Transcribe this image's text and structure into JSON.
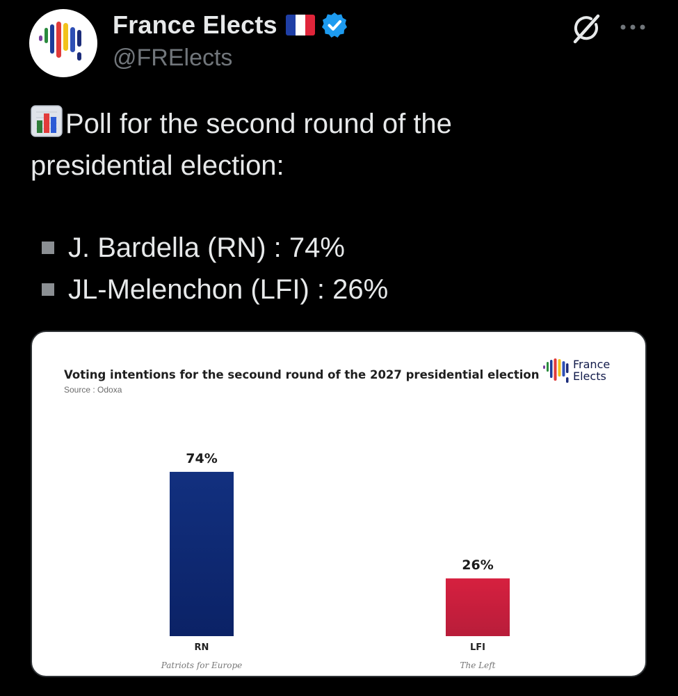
{
  "account": {
    "display_name": "France Elects",
    "handle": "@FRElects",
    "flag_icon": "france-flag-icon",
    "verified_icon": "verified-badge-icon"
  },
  "header_actions": {
    "grok_icon": "grok-icon",
    "more_icon": "more-options-icon"
  },
  "tweet": {
    "emoji_icon": "bar-chart-emoji",
    "text_line1": "Poll for the second round of the",
    "text_line2": "presidential election:",
    "bullets": [
      {
        "text": "J. Bardella (RN) : 74%"
      },
      {
        "text": "JL-Melenchon (LFI) : 26%"
      }
    ]
  },
  "media": {
    "brand_line1": "France",
    "brand_line2": "Elects",
    "colors": {
      "rn": "#0f2a7c",
      "lfi": "#c8203f"
    }
  },
  "chart_data": {
    "type": "bar",
    "title": "Voting intentions for the secound round of the 2027 presidential election",
    "source": "Source : Odoxa",
    "categories": [
      "RN",
      "LFI"
    ],
    "subtitles": [
      "Patriots for Europe",
      "The Left"
    ],
    "values": [
      74,
      26
    ],
    "value_labels": [
      "74%",
      "26%"
    ],
    "ylim": [
      0,
      100
    ],
    "grid": false,
    "legend": "none"
  }
}
